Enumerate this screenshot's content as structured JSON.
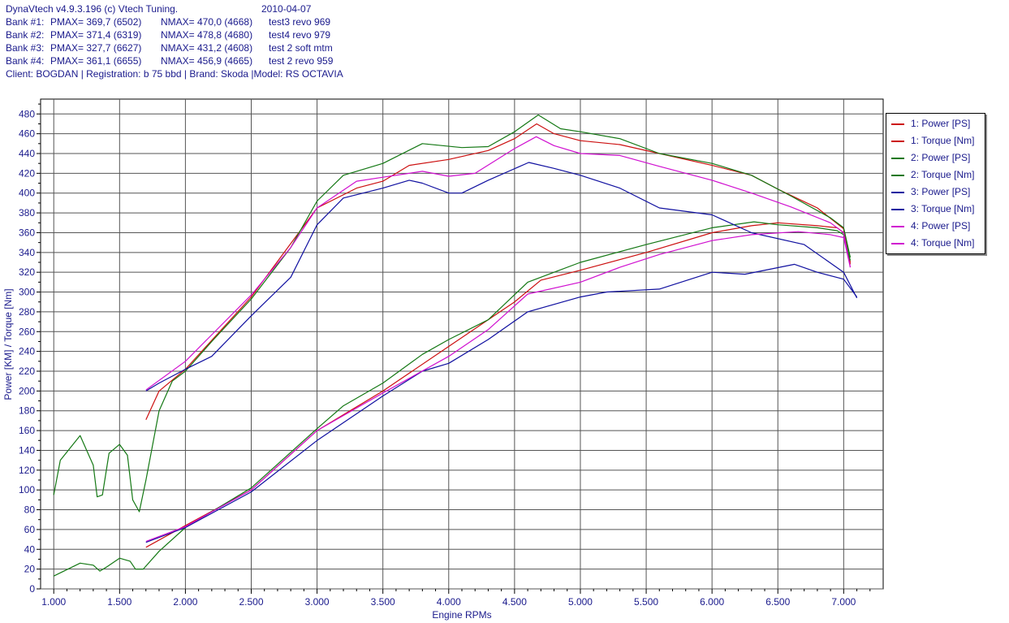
{
  "header": {
    "app_title": "DynaVtech v4.9.3.196 (c) Vtech Tuning.",
    "date": "2010-04-07",
    "banks": [
      {
        "label": "Bank #1:",
        "pmax": "PMAX= 369,7 (6502)",
        "nmax": "NMAX= 470,0 (4668)",
        "test": "test3 revo 969"
      },
      {
        "label": "Bank #2:",
        "pmax": "PMAX= 371,4 (6319)",
        "nmax": "NMAX= 478,8 (4680)",
        "test": "test4 revo 979"
      },
      {
        "label": "Bank #3:",
        "pmax": "PMAX= 327,7 (6627)",
        "nmax": "NMAX= 431,2 (4608)",
        "test": "test 2 soft mtm"
      },
      {
        "label": "Bank #4:",
        "pmax": "PMAX= 361,1 (6655)",
        "nmax": "NMAX= 456,9 (4665)",
        "test": "test 2 revo 959"
      }
    ],
    "client_line": "Client:  BOGDAN | Registration:  b 75 bbd | Brand: Skoda |Model: RS OCTAVIA"
  },
  "chart_data": {
    "type": "line",
    "xlabel": "Engine RPMs",
    "ylabel": "Power [KM] / Torque [Nm]",
    "xlim": [
      900,
      7300
    ],
    "ylim": [
      0,
      495
    ],
    "x_ticks": [
      1000,
      1500,
      2000,
      2500,
      3000,
      3500,
      4000,
      4500,
      5000,
      5500,
      6000,
      6500,
      7000
    ],
    "x_tick_labels": [
      "1.000",
      "1.500",
      "2.000",
      "2.500",
      "3.000",
      "3.500",
      "4.000",
      "4.500",
      "5.000",
      "5.500",
      "6.000",
      "6.500",
      "7.000"
    ],
    "y_ticks": [
      0,
      20,
      40,
      60,
      80,
      100,
      120,
      140,
      160,
      180,
      200,
      220,
      240,
      260,
      280,
      300,
      320,
      340,
      360,
      380,
      400,
      420,
      440,
      460,
      480
    ],
    "grid": true,
    "legend_position": "right",
    "series": [
      {
        "name": "1: Power [PS]",
        "color": "#cc1010",
        "points": [
          [
            1700,
            42
          ],
          [
            2000,
            64
          ],
          [
            2500,
            100
          ],
          [
            3000,
            160
          ],
          [
            3500,
            200
          ],
          [
            4000,
            245
          ],
          [
            4500,
            290
          ],
          [
            4700,
            312
          ],
          [
            5000,
            322
          ],
          [
            5500,
            340
          ],
          [
            6000,
            360
          ],
          [
            6300,
            367
          ],
          [
            6500,
            370
          ],
          [
            6800,
            367
          ],
          [
            6950,
            365
          ],
          [
            7000,
            360
          ],
          [
            7050,
            330
          ]
        ]
      },
      {
        "name": "1: Torque [Nm]",
        "color": "#cc1010",
        "points": [
          [
            1700,
            171
          ],
          [
            1800,
            200
          ],
          [
            2000,
            222
          ],
          [
            2500,
            295
          ],
          [
            3000,
            385
          ],
          [
            3300,
            405
          ],
          [
            3500,
            412
          ],
          [
            3700,
            428
          ],
          [
            4000,
            434
          ],
          [
            4300,
            443
          ],
          [
            4500,
            455
          ],
          [
            4668,
            470
          ],
          [
            4800,
            460
          ],
          [
            5000,
            453
          ],
          [
            5300,
            449
          ],
          [
            5600,
            440
          ],
          [
            6000,
            428
          ],
          [
            6300,
            418
          ],
          [
            6500,
            404
          ],
          [
            6800,
            385
          ],
          [
            7000,
            364
          ],
          [
            7050,
            328
          ]
        ]
      },
      {
        "name": "2: Power [PS]",
        "color": "#147814",
        "points": [
          [
            1000,
            13
          ],
          [
            1200,
            26
          ],
          [
            1300,
            24
          ],
          [
            1350,
            18
          ],
          [
            1400,
            22
          ],
          [
            1500,
            31
          ],
          [
            1580,
            28
          ],
          [
            1620,
            20
          ],
          [
            1680,
            20
          ],
          [
            1800,
            38
          ],
          [
            2000,
            62
          ],
          [
            2500,
            102
          ],
          [
            3000,
            162
          ],
          [
            3200,
            185
          ],
          [
            3500,
            208
          ],
          [
            3800,
            237
          ],
          [
            4000,
            252
          ],
          [
            4300,
            272
          ],
          [
            4600,
            310
          ],
          [
            4800,
            320
          ],
          [
            5000,
            330
          ],
          [
            5500,
            348
          ],
          [
            6000,
            365
          ],
          [
            6319,
            371
          ],
          [
            6500,
            368
          ],
          [
            6800,
            365
          ],
          [
            6950,
            362
          ],
          [
            7000,
            358
          ],
          [
            7050,
            332
          ]
        ]
      },
      {
        "name": "2: Torque [Nm]",
        "color": "#147814",
        "points": [
          [
            1000,
            95
          ],
          [
            1050,
            130
          ],
          [
            1200,
            155
          ],
          [
            1300,
            125
          ],
          [
            1330,
            93
          ],
          [
            1370,
            95
          ],
          [
            1420,
            137
          ],
          [
            1500,
            146
          ],
          [
            1560,
            135
          ],
          [
            1600,
            90
          ],
          [
            1650,
            78
          ],
          [
            1700,
            110
          ],
          [
            1800,
            180
          ],
          [
            1900,
            210
          ],
          [
            2000,
            220
          ],
          [
            2200,
            250
          ],
          [
            2500,
            293
          ],
          [
            2800,
            345
          ],
          [
            3000,
            392
          ],
          [
            3200,
            418
          ],
          [
            3500,
            430
          ],
          [
            3800,
            450
          ],
          [
            4100,
            446
          ],
          [
            4300,
            447
          ],
          [
            4500,
            462
          ],
          [
            4680,
            479
          ],
          [
            4850,
            465
          ],
          [
            5000,
            462
          ],
          [
            5300,
            455
          ],
          [
            5600,
            440
          ],
          [
            6000,
            430
          ],
          [
            6300,
            418
          ],
          [
            6600,
            397
          ],
          [
            6900,
            375
          ],
          [
            7000,
            365
          ],
          [
            7050,
            335
          ]
        ]
      },
      {
        "name": "3: Power [PS]",
        "color": "#1010a0",
        "points": [
          [
            1700,
            47
          ],
          [
            2000,
            62
          ],
          [
            2500,
            98
          ],
          [
            3000,
            150
          ],
          [
            3500,
            195
          ],
          [
            3800,
            220
          ],
          [
            4000,
            228
          ],
          [
            4300,
            252
          ],
          [
            4600,
            280
          ],
          [
            5000,
            295
          ],
          [
            5200,
            300
          ],
          [
            5600,
            303
          ],
          [
            6000,
            320
          ],
          [
            6250,
            318
          ],
          [
            6627,
            328
          ],
          [
            6800,
            320
          ],
          [
            7000,
            313
          ],
          [
            7100,
            295
          ]
        ]
      },
      {
        "name": "3: Torque [Nm]",
        "color": "#1010a0",
        "points": [
          [
            1700,
            200
          ],
          [
            1800,
            208
          ],
          [
            2000,
            222
          ],
          [
            2200,
            235
          ],
          [
            2500,
            276
          ],
          [
            2800,
            315
          ],
          [
            3000,
            368
          ],
          [
            3200,
            395
          ],
          [
            3500,
            405
          ],
          [
            3700,
            413
          ],
          [
            3800,
            410
          ],
          [
            4000,
            400
          ],
          [
            4100,
            400
          ],
          [
            4300,
            413
          ],
          [
            4608,
            431
          ],
          [
            4800,
            425
          ],
          [
            5000,
            418
          ],
          [
            5300,
            405
          ],
          [
            5600,
            385
          ],
          [
            6000,
            378
          ],
          [
            6300,
            360
          ],
          [
            6700,
            348
          ],
          [
            7000,
            320
          ],
          [
            7100,
            294
          ]
        ]
      },
      {
        "name": "4: Power [PS]",
        "color": "#d010d0",
        "points": [
          [
            1700,
            48
          ],
          [
            2000,
            63
          ],
          [
            2500,
            100
          ],
          [
            3000,
            160
          ],
          [
            3500,
            198
          ],
          [
            4000,
            235
          ],
          [
            4300,
            262
          ],
          [
            4600,
            298
          ],
          [
            5000,
            310
          ],
          [
            5300,
            325
          ],
          [
            5600,
            338
          ],
          [
            6000,
            352
          ],
          [
            6300,
            358
          ],
          [
            6655,
            361
          ],
          [
            6900,
            358
          ],
          [
            7000,
            355
          ],
          [
            7050,
            325
          ]
        ]
      },
      {
        "name": "4: Torque [Nm]",
        "color": "#d010d0",
        "points": [
          [
            1700,
            201
          ],
          [
            2000,
            230
          ],
          [
            2500,
            297
          ],
          [
            2800,
            345
          ],
          [
            3000,
            385
          ],
          [
            3300,
            412
          ],
          [
            3500,
            416
          ],
          [
            3800,
            422
          ],
          [
            4000,
            417
          ],
          [
            4200,
            420
          ],
          [
            4500,
            445
          ],
          [
            4665,
            457
          ],
          [
            4800,
            448
          ],
          [
            5000,
            440
          ],
          [
            5300,
            438
          ],
          [
            5600,
            427
          ],
          [
            6000,
            413
          ],
          [
            6300,
            400
          ],
          [
            6600,
            386
          ],
          [
            6900,
            370
          ],
          [
            7000,
            360
          ],
          [
            7050,
            325
          ]
        ]
      }
    ]
  }
}
